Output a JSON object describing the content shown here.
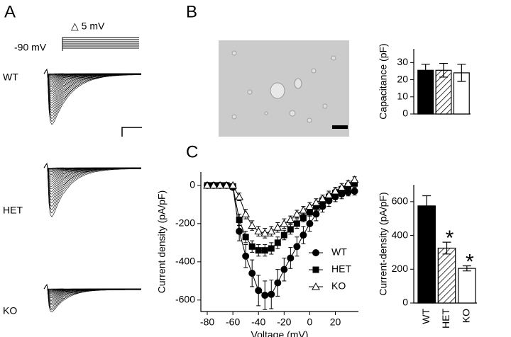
{
  "figure": {
    "panel_labels": [
      "A",
      "B",
      "C"
    ],
    "protocol": {
      "step": "△ 5 mV",
      "holding": "-90 mV"
    },
    "trace_labels": [
      "WT",
      "HET",
      "KO"
    ]
  },
  "chart_data": [
    {
      "type": "bar",
      "ylabel": "Capacitance (pF)",
      "categories": [
        null,
        null,
        null
      ],
      "values": [
        25.5,
        25.5,
        24
      ],
      "errors": [
        3.5,
        4,
        5
      ],
      "fills": [
        "#000000",
        "hatched",
        "#ffffff"
      ],
      "ylim": [
        0,
        38
      ],
      "yticks": [
        0,
        10,
        20,
        30
      ]
    },
    {
      "type": "line",
      "xlabel": "Voltage (mV)",
      "ylabel": "Current density (pA/pF)",
      "x": [
        -80,
        -75,
        -70,
        -65,
        -60,
        -55,
        -50,
        -45,
        -40,
        -35,
        -30,
        -25,
        -20,
        -15,
        -10,
        -5,
        0,
        5,
        10,
        15,
        20,
        25,
        30,
        35
      ],
      "series": [
        {
          "name": "WT",
          "marker": "circle",
          "color": "#000000",
          "values": [
            0,
            0,
            0,
            0,
            -10,
            -240,
            -370,
            -460,
            -550,
            -575,
            -570,
            -510,
            -440,
            -380,
            -320,
            -260,
            -200,
            -150,
            -110,
            -80,
            -60,
            -45,
            -35,
            -30
          ],
          "errors": [
            0,
            0,
            0,
            0,
            10,
            50,
            60,
            70,
            80,
            75,
            75,
            70,
            60,
            55,
            50,
            45,
            40,
            35,
            30,
            30,
            25,
            25,
            20,
            20
          ]
        },
        {
          "name": "HET",
          "marker": "square",
          "color": "#000000",
          "values": [
            0,
            0,
            0,
            0,
            -5,
            -180,
            -270,
            -320,
            -340,
            -340,
            -330,
            -300,
            -260,
            -230,
            -200,
            -170,
            -140,
            -110,
            -80,
            -60,
            -40,
            -20,
            -5,
            10
          ],
          "errors": [
            0,
            0,
            0,
            0,
            5,
            30,
            30,
            30,
            30,
            30,
            30,
            30,
            25,
            25,
            25,
            20,
            20,
            20,
            20,
            20,
            20,
            15,
            15,
            15
          ]
        },
        {
          "name": "KO",
          "marker": "triangle",
          "color": "#ffffff",
          "values": [
            0,
            0,
            0,
            0,
            0,
            -60,
            -150,
            -210,
            -240,
            -250,
            -240,
            -220,
            -200,
            -180,
            -150,
            -130,
            -110,
            -90,
            -70,
            -50,
            -30,
            -10,
            10,
            30
          ],
          "errors": [
            0,
            0,
            0,
            0,
            5,
            20,
            25,
            25,
            25,
            25,
            25,
            25,
            25,
            20,
            20,
            20,
            20,
            20,
            20,
            20,
            20,
            20,
            15,
            15
          ]
        }
      ],
      "xlim": [
        -85,
        38
      ],
      "xticks": [
        -80,
        -60,
        -40,
        -20,
        0,
        20
      ],
      "ylim": [
        -660,
        70
      ],
      "yticks": [
        -600,
        -400,
        -200,
        0
      ],
      "legend": "lower-right"
    },
    {
      "type": "bar",
      "ylabel": "Current-density (pA/pF)",
      "categories": [
        "WT",
        "HET",
        "KO"
      ],
      "values": [
        575,
        325,
        205
      ],
      "errors": [
        60,
        35,
        15
      ],
      "fills": [
        "#000000",
        "hatched",
        "#ffffff"
      ],
      "ylim": [
        0,
        700
      ],
      "yticks": [
        0,
        200,
        400,
        600
      ],
      "annotations": [
        "*",
        "*"
      ]
    }
  ]
}
